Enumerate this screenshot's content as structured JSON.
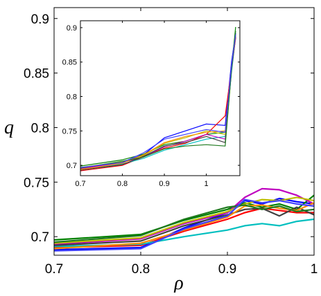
{
  "chart_data": [
    {
      "type": "line",
      "role": "main",
      "xlabel": "ρ",
      "ylabel": "q",
      "xlim": [
        0.7,
        1.0
      ],
      "ylim": [
        0.683,
        0.91
      ],
      "xticks": [
        "0.7",
        "0.8",
        "0.9",
        "1"
      ],
      "yticks": [
        "0.7",
        "0.75",
        "0.8",
        "0.85",
        "0.9"
      ],
      "grid": false,
      "legend": "none",
      "x": [
        0.7,
        0.8,
        0.85,
        0.9,
        0.92,
        0.94,
        0.96,
        0.98,
        1.0
      ],
      "series": [
        {
          "color": "#0000ff",
          "values": [
            0.688,
            0.69,
            0.708,
            0.722,
            0.733,
            0.73,
            0.735,
            0.732,
            0.73
          ]
        },
        {
          "color": "#008000",
          "values": [
            0.697,
            0.702,
            0.715,
            0.725,
            0.731,
            0.727,
            0.73,
            0.725,
            0.738
          ]
        },
        {
          "color": "#ff0000",
          "values": [
            0.69,
            0.692,
            0.705,
            0.716,
            0.722,
            0.726,
            0.724,
            0.722,
            0.722
          ]
        },
        {
          "color": "#00bfbf",
          "values": [
            0.691,
            0.693,
            0.7,
            0.706,
            0.71,
            0.712,
            0.71,
            0.714,
            0.716
          ]
        },
        {
          "color": "#bf00bf",
          "values": [
            0.693,
            0.698,
            0.712,
            0.722,
            0.736,
            0.744,
            0.743,
            0.738,
            0.73
          ]
        },
        {
          "color": "#bfbf00",
          "values": [
            0.694,
            0.699,
            0.713,
            0.723,
            0.73,
            0.734,
            0.733,
            0.736,
            0.733
          ]
        },
        {
          "color": "#404040",
          "values": [
            0.692,
            0.696,
            0.71,
            0.72,
            0.725,
            0.726,
            0.719,
            0.727,
            0.72
          ]
        },
        {
          "color": "#ff8c00",
          "values": [
            0.689,
            0.694,
            0.706,
            0.718,
            0.728,
            0.729,
            0.726,
            0.724,
            0.731
          ]
        },
        {
          "color": "#1f7a1f",
          "values": [
            0.695,
            0.701,
            0.716,
            0.727,
            0.729,
            0.725,
            0.728,
            0.723,
            0.725
          ]
        },
        {
          "color": "#4040ff",
          "values": [
            0.687,
            0.689,
            0.707,
            0.719,
            0.734,
            0.731,
            0.733,
            0.73,
            0.728
          ]
        }
      ]
    },
    {
      "type": "line",
      "role": "inset",
      "xlabel": "",
      "ylabel": "",
      "xlim": [
        0.7,
        1.08
      ],
      "ylim": [
        0.685,
        0.91
      ],
      "xticks": [
        "0.7",
        "0.8",
        "0.9",
        "1"
      ],
      "yticks": [
        "0.7",
        "0.75",
        "0.8",
        "0.85",
        "0.9"
      ],
      "grid": false,
      "legend": "none",
      "x": [
        0.7,
        0.8,
        0.85,
        0.9,
        0.95,
        1.0,
        1.045,
        1.06,
        1.07
      ],
      "series": [
        {
          "color": "#0000ff",
          "values": [
            0.696,
            0.705,
            0.715,
            0.74,
            0.75,
            0.76,
            0.758,
            0.85,
            0.892
          ]
        },
        {
          "color": "#008000",
          "values": [
            0.699,
            0.708,
            0.716,
            0.73,
            0.735,
            0.745,
            0.748,
            0.84,
            0.901
          ]
        },
        {
          "color": "#ff0000",
          "values": [
            0.692,
            0.7,
            0.712,
            0.725,
            0.732,
            0.745,
            0.772,
            0.84,
            0.885
          ]
        },
        {
          "color": "#00bfbf",
          "values": [
            0.694,
            0.702,
            0.71,
            0.722,
            0.73,
            0.738,
            0.742,
            0.835,
            0.888
          ]
        },
        {
          "color": "#bf00bf",
          "values": [
            0.695,
            0.704,
            0.712,
            0.727,
            0.735,
            0.745,
            0.738,
            0.84,
            0.886
          ]
        },
        {
          "color": "#bfbf00",
          "values": [
            0.697,
            0.705,
            0.714,
            0.732,
            0.74,
            0.75,
            0.745,
            0.845,
            0.89
          ]
        },
        {
          "color": "#404040",
          "values": [
            0.693,
            0.701,
            0.713,
            0.728,
            0.733,
            0.742,
            0.733,
            0.838,
            0.887
          ]
        },
        {
          "color": "#ff8c00",
          "values": [
            0.694,
            0.703,
            0.715,
            0.733,
            0.742,
            0.748,
            0.75,
            0.842,
            0.889
          ]
        },
        {
          "color": "#1f7a1f",
          "values": [
            0.696,
            0.706,
            0.712,
            0.724,
            0.728,
            0.73,
            0.728,
            0.838,
            0.895
          ]
        },
        {
          "color": "#4040ff",
          "values": [
            0.697,
            0.704,
            0.718,
            0.738,
            0.745,
            0.752,
            0.748,
            0.845,
            0.89
          ]
        }
      ]
    }
  ]
}
